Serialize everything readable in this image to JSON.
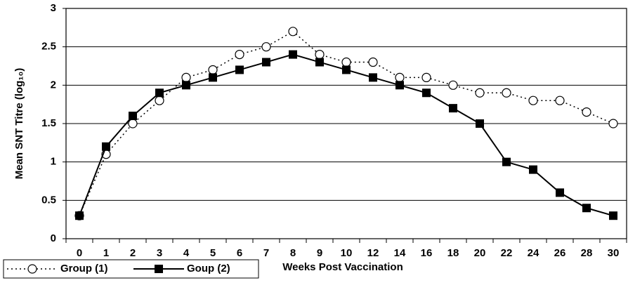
{
  "chart_data": {
    "type": "line",
    "xlabel": "Weeks Post Vaccination",
    "ylabel": "Mean SNT Titre (log₁₀)",
    "categories": [
      "0",
      "1",
      "2",
      "3",
      "4",
      "5",
      "6",
      "7",
      "8",
      "9",
      "10",
      "12",
      "14",
      "16",
      "18",
      "20",
      "22",
      "24",
      "26",
      "28",
      "30"
    ],
    "series": [
      {
        "name": "Group (1)",
        "color": "#000000",
        "dash": "dotted",
        "marker": "open-circle",
        "values": [
          0.3,
          1.1,
          1.5,
          1.8,
          2.1,
          2.2,
          2.4,
          2.5,
          2.7,
          2.4,
          2.3,
          2.3,
          2.1,
          2.1,
          2.0,
          1.9,
          1.9,
          1.8,
          1.8,
          1.65,
          1.5
        ]
      },
      {
        "name": "Goup (2)",
        "color": "#000000",
        "dash": "solid",
        "marker": "filled-square",
        "values": [
          0.3,
          1.2,
          1.6,
          1.9,
          2.0,
          2.1,
          2.2,
          2.3,
          2.4,
          2.3,
          2.2,
          2.1,
          2.0,
          1.9,
          1.7,
          1.5,
          1.0,
          0.9,
          0.6,
          0.4,
          0.3
        ]
      }
    ],
    "ylim": [
      0,
      3
    ],
    "yticks": [
      0,
      0.5,
      1,
      1.5,
      2,
      2.5,
      3
    ],
    "grid": true,
    "legend": "bottom-left"
  }
}
